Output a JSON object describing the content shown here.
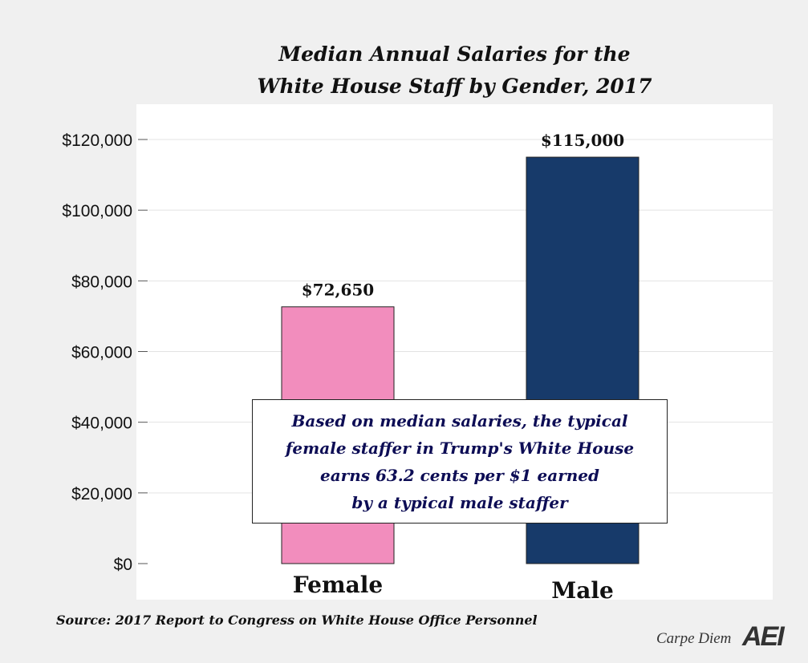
{
  "chart_data": {
    "type": "bar",
    "title_lines": [
      "Median Annual Salaries for the",
      "White House Staff by Gender, 2017"
    ],
    "categories": [
      "Female",
      "Male"
    ],
    "values": [
      72650,
      115000
    ],
    "data_labels": [
      "$72,650",
      "$115,000"
    ],
    "colors": [
      "#f28dbd",
      "#173a6a"
    ],
    "ylim": [
      0,
      120000
    ],
    "yticks": [
      0,
      20000,
      40000,
      60000,
      80000,
      100000,
      120000
    ],
    "ytick_labels": [
      "$0",
      "$20,000",
      "$40,000",
      "$60,000",
      "$80,000",
      "$100,000",
      "$120,000"
    ],
    "grid": true,
    "annotation_lines": [
      "Based on median salaries, the typical",
      "female staffer in Trump's White House",
      "earns 63.2 cents per $1 earned",
      "by a typical male staffer"
    ],
    "source": "Source: 2017 Report to Congress on White House Office Personnel"
  },
  "branding": {
    "blog": "Carpe Diem",
    "logo": "AEI"
  }
}
